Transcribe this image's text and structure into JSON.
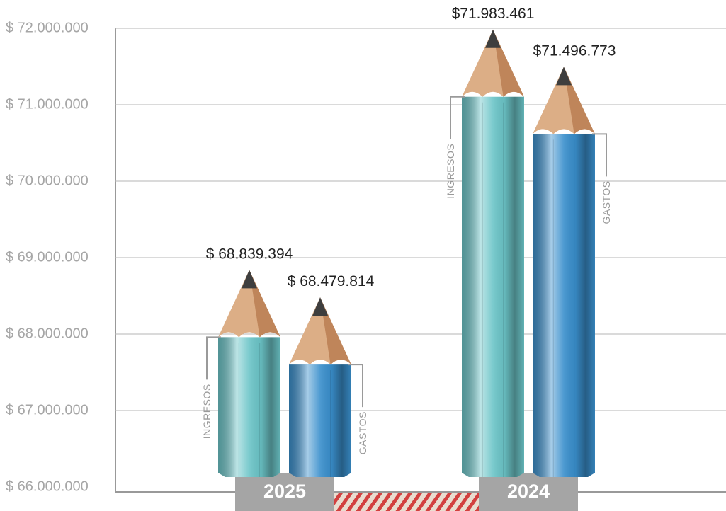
{
  "chart_data": {
    "type": "pencil-bar",
    "categories": [
      "2025",
      "2024"
    ],
    "series": [
      {
        "name": "INGRESOS",
        "color": "#6cc5c8",
        "values": [
          68839394,
          71983461
        ],
        "value_labels": [
          "$ 68.839.394",
          "$71.983.461"
        ]
      },
      {
        "name": "GASTOS",
        "color": "#3a8fcc",
        "values": [
          68479814,
          71496773
        ],
        "value_labels": [
          "$ 68.479.814",
          "$71.496.773"
        ]
      }
    ],
    "ylim": [
      66000000,
      72000000
    ],
    "yticks": [
      {
        "value": 66000000,
        "label": "$ 66.000.000"
      },
      {
        "value": 67000000,
        "label": "$ 67.000.000"
      },
      {
        "value": 68000000,
        "label": "$ 68.000.000"
      },
      {
        "value": 69000000,
        "label": "$ 69.000.000"
      },
      {
        "value": 70000000,
        "label": "$ 70.000.000"
      },
      {
        "value": 71000000,
        "label": "$ 71.000.000"
      },
      {
        "value": 72000000,
        "label": "$ 72.000.000"
      }
    ],
    "grid": true
  }
}
